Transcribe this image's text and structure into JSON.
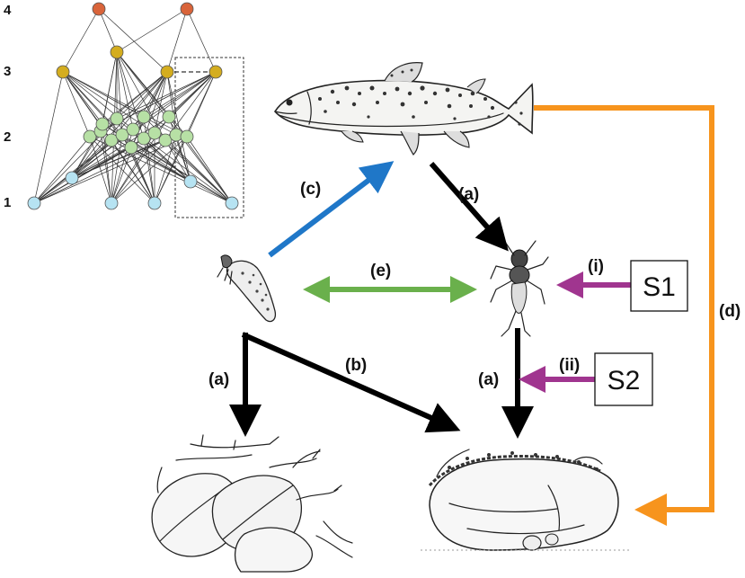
{
  "network": {
    "levels": [
      "4",
      "3",
      "2",
      "1"
    ],
    "node_colors": {
      "level4": "#d9643a",
      "level3": "#d4ad1f",
      "level2": "#b7e0a5",
      "level1": "#b6e3f2"
    }
  },
  "labels": {
    "c": "(c)",
    "a_fish": "(a)",
    "e": "(e)",
    "i": "(i)",
    "d": "(d)",
    "a_left": "(a)",
    "b": "(b)",
    "a_right": "(a)",
    "ii": "(ii)"
  },
  "stressors": {
    "s1": "S1",
    "s2": "S2"
  },
  "colors": {
    "feeding": "#000000",
    "blue": "#1f77c8",
    "green": "#6ab04c",
    "orange": "#f7941d",
    "purple": "#a0358f"
  },
  "organisms": [
    "trout-illustration",
    "stonefly-nymph-illustration",
    "caddisfly-larva-illustration",
    "leaf-litter-illustration",
    "algae-rock-illustration"
  ]
}
